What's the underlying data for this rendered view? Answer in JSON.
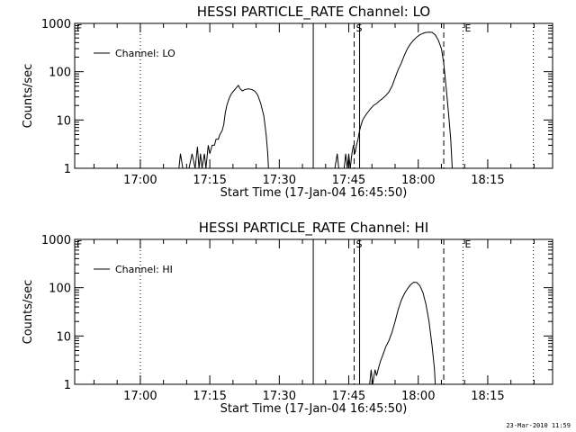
{
  "footer": {
    "timestamp": "23-Mar-2010 11:59"
  },
  "chart_data": [
    {
      "type": "line",
      "title": "HESSI PARTICLE_RATE Channel: LO",
      "xlabel": "Start Time (17-Jan-04 16:45:50)",
      "ylabel": "Counts/sec",
      "yscale": "log",
      "ylim": [
        1,
        1000
      ],
      "xlim": [
        "16:45:50",
        "18:29:00"
      ],
      "x_ticks": [
        "17:00",
        "17:15",
        "17:30",
        "17:45",
        "18:00",
        "18:15"
      ],
      "y_ticks": [
        "1",
        "10",
        "100",
        "1000"
      ],
      "legend": {
        "position": "top-left",
        "entries": [
          "Channel: LO"
        ]
      },
      "markers": [
        {
          "label": "F",
          "time": "16:45:50",
          "style": "dotted"
        },
        {
          "label": "",
          "time": "17:00",
          "style": "dotted"
        },
        {
          "label": "",
          "time": "17:37:20",
          "style": "solid"
        },
        {
          "label": "",
          "time": "17:47:20",
          "style": "solid"
        },
        {
          "label": "S",
          "time": "17:46:10",
          "style": "dashed"
        },
        {
          "label": "",
          "time": "18:05:30",
          "style": "dashed"
        },
        {
          "label": "E",
          "time": "18:09:40",
          "style": "dotted"
        },
        {
          "label": "",
          "time": "18:24:50",
          "style": "dotted"
        }
      ],
      "series": [
        {
          "name": "Channel: LO",
          "points": [
            [
              "17:08:20",
              1
            ],
            [
              "17:08:40",
              2
            ],
            [
              "17:09:10",
              1
            ],
            [
              "17:10:30",
              1
            ],
            [
              "17:11:10",
              2
            ],
            [
              "17:11:50",
              1
            ],
            [
              "17:12:20",
              2.8
            ],
            [
              "17:12:40",
              1
            ],
            [
              "17:13:00",
              2
            ],
            [
              "17:13:20",
              1
            ],
            [
              "17:13:50",
              2
            ],
            [
              "17:14:10",
              1
            ],
            [
              "17:14:40",
              3
            ],
            [
              "17:15:00",
              2
            ],
            [
              "17:15:30",
              3
            ],
            [
              "17:16:00",
              3
            ],
            [
              "17:16:20",
              4
            ],
            [
              "17:16:50",
              4
            ],
            [
              "17:17:10",
              5
            ],
            [
              "17:17:40",
              6
            ],
            [
              "17:18:00",
              8
            ],
            [
              "17:18:20",
              14
            ],
            [
              "17:18:40",
              20
            ],
            [
              "17:19:10",
              28
            ],
            [
              "17:19:40",
              35
            ],
            [
              "17:20:10",
              40
            ],
            [
              "17:20:40",
              46
            ],
            [
              "17:21:10",
              52
            ],
            [
              "17:21:30",
              45
            ],
            [
              "17:22:00",
              40
            ],
            [
              "17:22:40",
              43
            ],
            [
              "17:23:20",
              44
            ],
            [
              "17:24:00",
              43
            ],
            [
              "17:24:40",
              40
            ],
            [
              "17:25:20",
              33
            ],
            [
              "17:26:00",
              22
            ],
            [
              "17:26:40",
              12
            ],
            [
              "17:27:10",
              5
            ],
            [
              "17:27:30",
              2
            ],
            [
              "17:27:40",
              1
            ],
            [
              "17:42:00",
              1
            ],
            [
              "17:42:30",
              2
            ],
            [
              "17:42:50",
              1
            ],
            [
              "17:44:00",
              1
            ],
            [
              "17:44:20",
              2
            ],
            [
              "17:44:40",
              1
            ],
            [
              "17:45:00",
              2
            ],
            [
              "17:45:20",
              1
            ],
            [
              "17:45:40",
              2
            ],
            [
              "17:46:00",
              3
            ],
            [
              "17:46:20",
              2
            ],
            [
              "17:46:40",
              3
            ],
            [
              "17:47:00",
              4
            ],
            [
              "17:47:20",
              6
            ],
            [
              "17:47:40",
              8
            ],
            [
              "17:48:00",
              10
            ],
            [
              "17:48:30",
              12
            ],
            [
              "17:49:00",
              14
            ],
            [
              "17:49:40",
              17
            ],
            [
              "17:50:20",
              20
            ],
            [
              "17:51:00",
              22
            ],
            [
              "17:51:40",
              25
            ],
            [
              "17:52:20",
              28
            ],
            [
              "17:53:00",
              32
            ],
            [
              "17:53:40",
              38
            ],
            [
              "17:54:20",
              50
            ],
            [
              "17:55:00",
              75
            ],
            [
              "17:55:40",
              110
            ],
            [
              "17:56:20",
              150
            ],
            [
              "17:57:00",
              220
            ],
            [
              "17:57:40",
              300
            ],
            [
              "17:58:20",
              380
            ],
            [
              "17:59:00",
              450
            ],
            [
              "17:59:40",
              520
            ],
            [
              "18:00:20",
              580
            ],
            [
              "18:01:00",
              620
            ],
            [
              "18:01:40",
              650
            ],
            [
              "18:02:20",
              660
            ],
            [
              "18:03:00",
              650
            ],
            [
              "18:03:40",
              580
            ],
            [
              "18:04:20",
              450
            ],
            [
              "18:05:00",
              300
            ],
            [
              "18:05:30",
              150
            ],
            [
              "18:06:00",
              50
            ],
            [
              "18:06:30",
              15
            ],
            [
              "18:07:00",
              4
            ],
            [
              "18:07:20",
              1
            ]
          ]
        }
      ]
    },
    {
      "type": "line",
      "title": "HESSI PARTICLE_RATE Channel: HI",
      "xlabel": "Start Time (17-Jan-04 16:45:50)",
      "ylabel": "Counts/sec",
      "yscale": "log",
      "ylim": [
        1,
        1000
      ],
      "xlim": [
        "16:45:50",
        "18:29:00"
      ],
      "x_ticks": [
        "17:00",
        "17:15",
        "17:30",
        "17:45",
        "18:00",
        "18:15"
      ],
      "y_ticks": [
        "1",
        "10",
        "100",
        "1000"
      ],
      "legend": {
        "position": "top-left",
        "entries": [
          "Channel: HI"
        ]
      },
      "markers": [
        {
          "label": "F",
          "time": "16:45:50",
          "style": "dotted"
        },
        {
          "label": "",
          "time": "17:00",
          "style": "dotted"
        },
        {
          "label": "",
          "time": "17:37:20",
          "style": "solid"
        },
        {
          "label": "",
          "time": "17:47:20",
          "style": "solid"
        },
        {
          "label": "S",
          "time": "17:46:10",
          "style": "dashed"
        },
        {
          "label": "",
          "time": "18:05:30",
          "style": "dashed"
        },
        {
          "label": "E",
          "time": "18:09:40",
          "style": "dotted"
        },
        {
          "label": "",
          "time": "18:24:50",
          "style": "dotted"
        }
      ],
      "series": [
        {
          "name": "Channel: HI",
          "points": [
            [
              "17:49:30",
              1
            ],
            [
              "17:49:50",
              2
            ],
            [
              "17:50:10",
              1
            ],
            [
              "17:50:40",
              2
            ],
            [
              "17:51:00",
              1.5
            ],
            [
              "17:51:20",
              2
            ],
            [
              "17:51:50",
              3
            ],
            [
              "17:52:20",
              4
            ],
            [
              "17:53:00",
              6
            ],
            [
              "17:53:40",
              8
            ],
            [
              "17:54:20",
              12
            ],
            [
              "17:55:00",
              20
            ],
            [
              "17:55:40",
              35
            ],
            [
              "17:56:20",
              55
            ],
            [
              "17:57:00",
              75
            ],
            [
              "17:57:40",
              95
            ],
            [
              "17:58:20",
              115
            ],
            [
              "17:59:00",
              130
            ],
            [
              "17:59:40",
              128
            ],
            [
              "18:00:20",
              110
            ],
            [
              "18:01:00",
              80
            ],
            [
              "18:01:40",
              45
            ],
            [
              "18:02:20",
              20
            ],
            [
              "18:03:00",
              6
            ],
            [
              "18:03:30",
              2
            ],
            [
              "18:03:40",
              1
            ]
          ]
        }
      ]
    }
  ]
}
